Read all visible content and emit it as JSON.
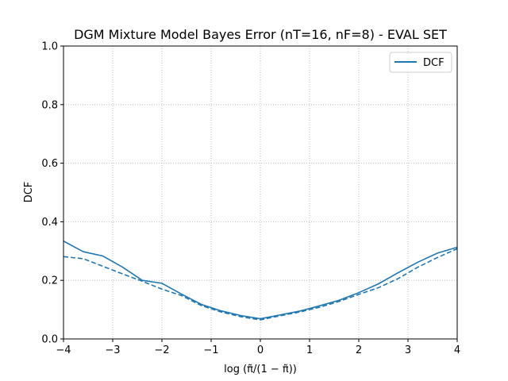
{
  "chart_data": {
    "type": "line",
    "title": "DGM Mixture Model Bayes Error (nT=16, nF=8) - EVAL SET",
    "xlabel": "log (π̃/(1 − π̃))",
    "ylabel": "DCF",
    "xlim": [
      -4,
      4
    ],
    "ylim": [
      0,
      1.0
    ],
    "xticks": [
      -4,
      -3,
      -2,
      -1,
      0,
      1,
      2,
      3,
      4
    ],
    "xtick_labels": [
      "−4",
      "−3",
      "−2",
      "−1",
      "0",
      "1",
      "2",
      "3",
      "4"
    ],
    "yticks": [
      0,
      0.2,
      0.4,
      0.6,
      0.8,
      1.0
    ],
    "ytick_labels": [
      "0.0",
      "0.2",
      "0.4",
      "0.6",
      "0.8",
      "1.0"
    ],
    "grid": true,
    "legend": {
      "position": "top-right",
      "entries": [
        "DCF"
      ]
    },
    "series_color": "#1f77b4",
    "series": [
      {
        "name": "DCF",
        "style": "solid",
        "x": [
          -4.0,
          -3.6,
          -3.2,
          -2.8,
          -2.4,
          -2.0,
          -1.6,
          -1.2,
          -0.8,
          -0.4,
          0.0,
          0.4,
          0.8,
          1.2,
          1.6,
          2.0,
          2.4,
          2.8,
          3.2,
          3.6,
          4.0
        ],
        "y": [
          0.334,
          0.298,
          0.283,
          0.245,
          0.2,
          0.19,
          0.153,
          0.118,
          0.096,
          0.08,
          0.069,
          0.082,
          0.095,
          0.113,
          0.132,
          0.158,
          0.188,
          0.226,
          0.262,
          0.293,
          0.313
        ]
      },
      {
        "style": "dashed",
        "x": [
          -4.0,
          -3.6,
          -3.2,
          -2.8,
          -2.4,
          -2.0,
          -1.6,
          -1.2,
          -0.8,
          -0.4,
          0.0,
          0.4,
          0.8,
          1.2,
          1.6,
          2.0,
          2.4,
          2.8,
          3.2,
          3.6,
          4.0
        ],
        "y": [
          0.281,
          0.274,
          0.248,
          0.222,
          0.197,
          0.17,
          0.148,
          0.114,
          0.092,
          0.076,
          0.065,
          0.079,
          0.092,
          0.108,
          0.128,
          0.152,
          0.175,
          0.206,
          0.245,
          0.278,
          0.308
        ]
      }
    ]
  }
}
